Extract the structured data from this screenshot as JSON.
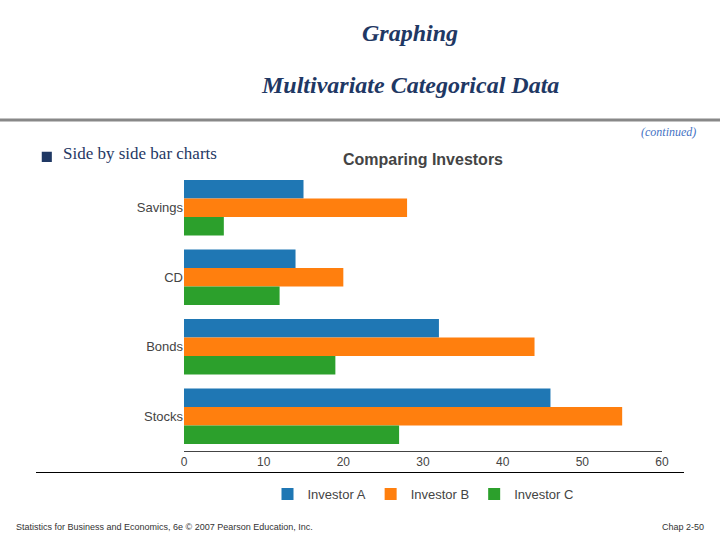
{
  "chart_data": {
    "type": "bar",
    "orientation": "horizontal",
    "title": "Comparing Investors",
    "annotations": [
      "Graphing",
      "Multivariate Categorical Data",
      "(continued)",
      "Side by side bar charts",
      "Statistics for Business and Economics, 6e © 2007 Pearson Education, Inc.",
      "Chap 2-50"
    ],
    "categories": [
      "Savings",
      "CD",
      "Bonds",
      "Stocks"
    ],
    "series": [
      {
        "name": "Investor A",
        "values": [
          15,
          14,
          32,
          46
        ]
      },
      {
        "name": "Investor B",
        "values": [
          28,
          20,
          44,
          55
        ]
      },
      {
        "name": "Investor C",
        "values": [
          5,
          12,
          19,
          27
        ]
      }
    ],
    "xlim": [
      0,
      60
    ],
    "xticks": [
      0,
      10,
      20,
      30,
      40,
      50,
      60
    ],
    "grid": false,
    "legend": "bottom"
  }
}
